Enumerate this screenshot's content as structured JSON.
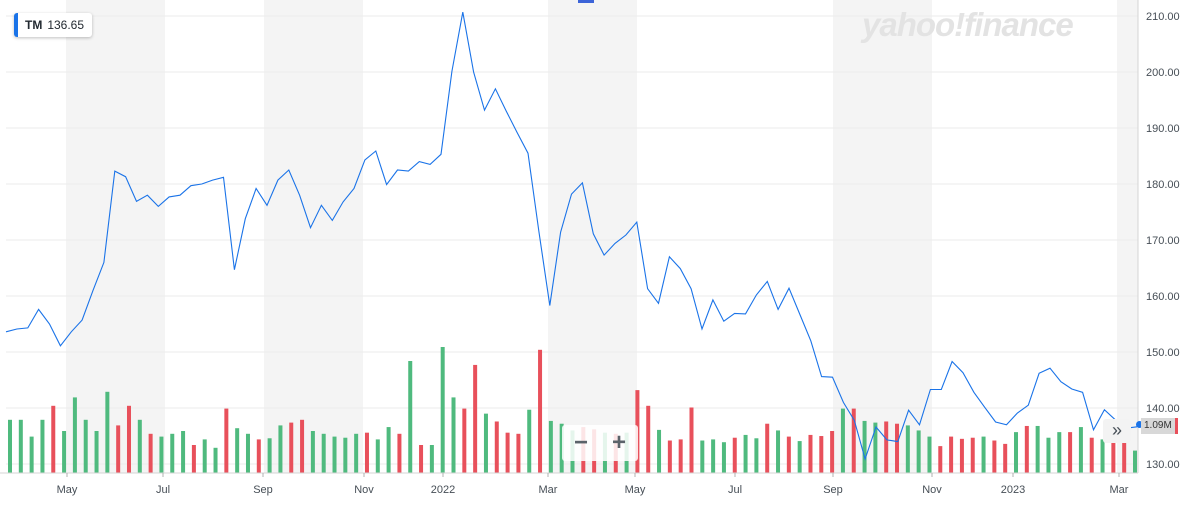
{
  "ticker": {
    "symbol": "TM",
    "price": "136.65"
  },
  "watermark": "yahoo!finance",
  "volume_label": "1.09M",
  "zoom": {
    "minus": "−",
    "plus": "+"
  },
  "expand_icon": "»",
  "colors": {
    "line": "#1a73e8",
    "vol_up": "#4fba7e",
    "vol_down": "#e8505b",
    "band": "#f4f4f4",
    "grid": "#ebebeb"
  },
  "chart_data": {
    "type": "line",
    "title": "",
    "xlabel": "",
    "ylabel": "",
    "ylim": [
      128,
      212
    ],
    "y_ticks": [
      "130.00",
      "140.00",
      "150.00",
      "160.00",
      "170.00",
      "180.00",
      "190.00",
      "200.00",
      "210.00"
    ],
    "x_ticks": [
      "May",
      "Jul",
      "Sep",
      "Nov",
      "2022",
      "Mar",
      "May",
      "Jul",
      "Sep",
      "Nov",
      "2023",
      "Mar"
    ],
    "grid": true,
    "series": [
      {
        "values": [
          153.6,
          154.1,
          154.3,
          157.6,
          155,
          151.1,
          153.6,
          155.7,
          161,
          166,
          182.3,
          181.3,
          176.9,
          178,
          176,
          177.7,
          178,
          179.7,
          180,
          180.7,
          181.2,
          164.7,
          173.8,
          179.2,
          176.2,
          180.7,
          182.5,
          178,
          172.2,
          176.2,
          173.5,
          176.8,
          179.2,
          184.3,
          185.9,
          179.9,
          182.5,
          182.3,
          184,
          183.5,
          185.3,
          200.1,
          210.7,
          200,
          193.2,
          197,
          193,
          189.2,
          185.5,
          171.5,
          158.3,
          171.4,
          178.2,
          180.2,
          171.1,
          167.3,
          169.4,
          170.9,
          173.2,
          161.3,
          158.7,
          167,
          164.9,
          161.3,
          154.1,
          159.3,
          155.5,
          156.9,
          156.8,
          160.2,
          162.6,
          157.6,
          161.4,
          156.7,
          152,
          145.6,
          145.5,
          141,
          137.8,
          130.9,
          136.6,
          134.3,
          134,
          139.6,
          137,
          143.3,
          143.3,
          148.3,
          146.3,
          142.8,
          140.1,
          137.5,
          137,
          139.1,
          140.5,
          146.2,
          147.1,
          144.7,
          143.4,
          142.8,
          136.1,
          139.7,
          137.9,
          136.4,
          136.65
        ]
      }
    ],
    "volume": {
      "values": [
        9.5,
        9.5,
        6.5,
        9.5,
        12,
        7.5,
        13.5,
        9.5,
        7.5,
        14.5,
        8.5,
        12,
        9.5,
        7,
        6.5,
        7,
        7.5,
        5,
        6,
        4.5,
        11.5,
        8,
        7,
        6,
        6.2,
        8.5,
        9,
        9.5,
        7.5,
        7,
        6.5,
        6.3,
        7,
        7.2,
        6,
        8.2,
        7,
        20,
        5,
        5,
        22.5,
        13.5,
        11.5,
        19.3,
        10.6,
        9.2,
        7.2,
        7,
        11.3,
        22,
        9.3,
        8.8,
        7.6,
        8.2,
        7.8,
        7.2,
        7,
        7.2,
        14.8,
        12,
        7.7,
        5.8,
        6,
        11.7,
        5.8,
        6,
        5.5,
        6.3,
        6.8,
        6.2,
        8.8,
        7.6,
        6.5,
        5.7,
        6.8,
        6.6,
        7.5,
        11.5,
        11.5,
        9.3,
        9,
        9.2,
        8.8,
        8.5,
        7.6,
        6.5,
        4.8,
        6.5,
        6.1,
        6.3,
        6.5,
        5.8,
        5.2,
        7.3,
        8.4,
        8.4,
        6.3,
        7.3,
        7.3,
        8.2,
        6.3,
        6,
        5.8,
        5.5,
        4
      ],
      "up": [
        1,
        1,
        1,
        1,
        0,
        1,
        1,
        1,
        1,
        1,
        0,
        0,
        1,
        0,
        1,
        1,
        1,
        0,
        1,
        1,
        0,
        1,
        1,
        0,
        1,
        1,
        0,
        0,
        1,
        1,
        1,
        1,
        1,
        0,
        1,
        1,
        0,
        1,
        0,
        1,
        1,
        1,
        0,
        0,
        1,
        0,
        0,
        0,
        1,
        0,
        1,
        1,
        1,
        0,
        0,
        1,
        0,
        1,
        0,
        0,
        1,
        0,
        0,
        0,
        1,
        1,
        1,
        0,
        1,
        1,
        0,
        1,
        0,
        1,
        0,
        0,
        0,
        1,
        0,
        1,
        1,
        0,
        0,
        1,
        1,
        1,
        0,
        0,
        0,
        0,
        1,
        0,
        0,
        1,
        0,
        1,
        1,
        1,
        0,
        1,
        0,
        1,
        0,
        0,
        1
      ]
    }
  }
}
